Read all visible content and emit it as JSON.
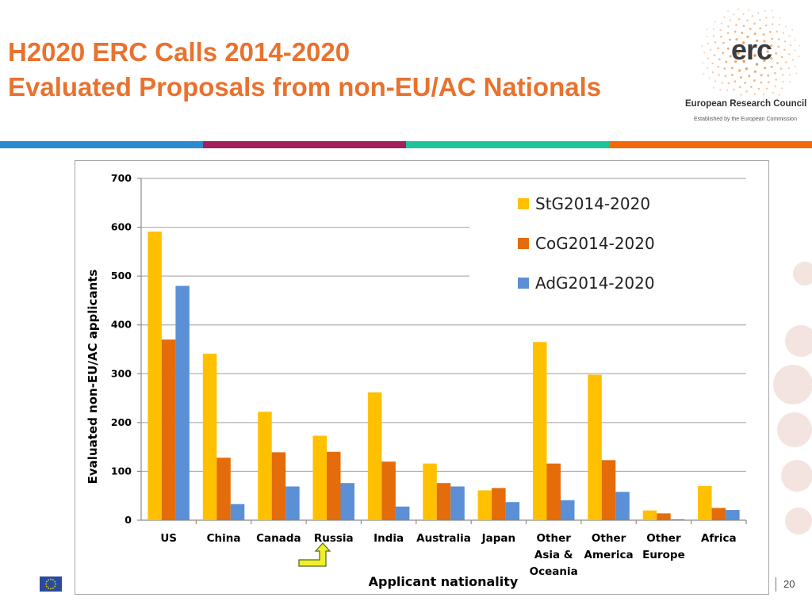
{
  "slide": {
    "title_line1": "H2020 ERC Calls 2014-2020",
    "title_line2": "Evaluated Proposals from non-EU/AC Nationals",
    "page_number": "20"
  },
  "logo": {
    "brand": "erc",
    "subtitle": "European Research Council",
    "established": "Established by the European Commission"
  },
  "colors": {
    "title": "#e8722e",
    "stripe": [
      "#2d8ad0",
      "#a31f5e",
      "#1ec39a",
      "#f06a0c"
    ],
    "stg": "#ffc000",
    "cog": "#e46c0a",
    "adg": "#5b8fd6"
  },
  "chart_data": {
    "type": "bar",
    "title": "",
    "xlabel": "Applicant nationality",
    "ylabel": "Evaluated non-EU/AC applicants",
    "ylim": [
      0,
      700
    ],
    "yticks": [
      0,
      100,
      200,
      300,
      400,
      500,
      600,
      700
    ],
    "grid": true,
    "legend_position": "top-right",
    "categories": [
      [
        "US"
      ],
      [
        "China"
      ],
      [
        "Canada"
      ],
      [
        "Russia"
      ],
      [
        "India"
      ],
      [
        "Australia"
      ],
      [
        "Japan"
      ],
      [
        "Other",
        "Asia &",
        "Oceania"
      ],
      [
        "Other",
        "America"
      ],
      [
        "Other",
        "Europe"
      ],
      [
        "Africa"
      ]
    ],
    "series": [
      {
        "name": "StG2014-2020",
        "color": "#ffc000",
        "values": [
          591,
          341,
          222,
          173,
          262,
          116,
          61,
          365,
          298,
          20,
          70
        ]
      },
      {
        "name": "CoG2014-2020",
        "color": "#e46c0a",
        "values": [
          370,
          128,
          139,
          140,
          120,
          76,
          66,
          116,
          123,
          14,
          25
        ]
      },
      {
        "name": "AdG2014-2020",
        "color": "#5b8fd6",
        "values": [
          480,
          33,
          69,
          76,
          28,
          69,
          37,
          41,
          58,
          2,
          21
        ]
      }
    ]
  }
}
